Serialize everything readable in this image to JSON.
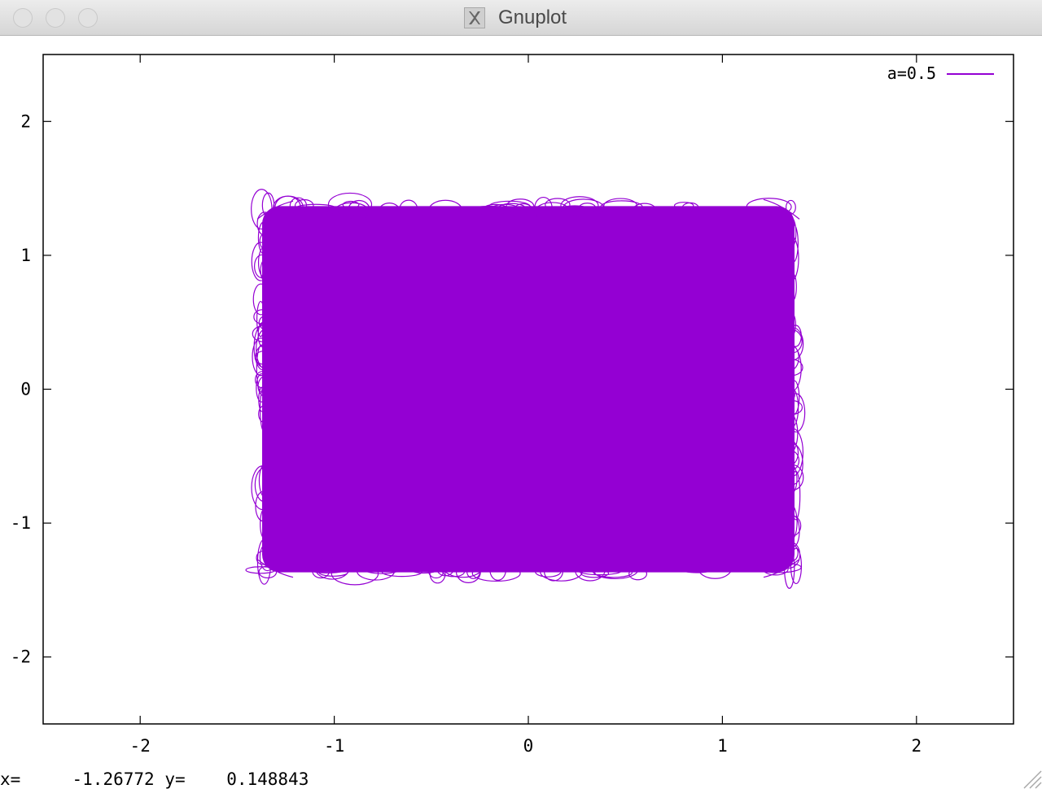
{
  "window": {
    "title": "Gnuplot",
    "logo_icon": "x11-icon"
  },
  "status": {
    "x_label": "x=",
    "x_value": "-1.26772",
    "y_label": "y=",
    "y_value": "0.148843"
  },
  "chart_data": {
    "type": "line",
    "title": "",
    "xlabel": "",
    "ylabel": "",
    "xlim": [
      -2.5,
      2.5
    ],
    "ylim": [
      -2.5,
      2.5
    ],
    "x_ticks": [
      -2,
      -1,
      0,
      1,
      2
    ],
    "y_ticks": [
      -2,
      -1,
      0,
      1,
      2
    ],
    "x_tick_labels": [
      "-2",
      "-1",
      "0",
      "1",
      "2"
    ],
    "y_tick_labels": [
      "-2",
      "-1",
      "0",
      "1",
      "2"
    ],
    "grid": false,
    "legend_position": "top-right",
    "series": [
      {
        "name": "a=0.5",
        "color": "#9400d3",
        "x_range": [
          -1.38,
          1.38
        ],
        "y_range": [
          -1.38,
          1.38
        ]
      }
    ]
  }
}
